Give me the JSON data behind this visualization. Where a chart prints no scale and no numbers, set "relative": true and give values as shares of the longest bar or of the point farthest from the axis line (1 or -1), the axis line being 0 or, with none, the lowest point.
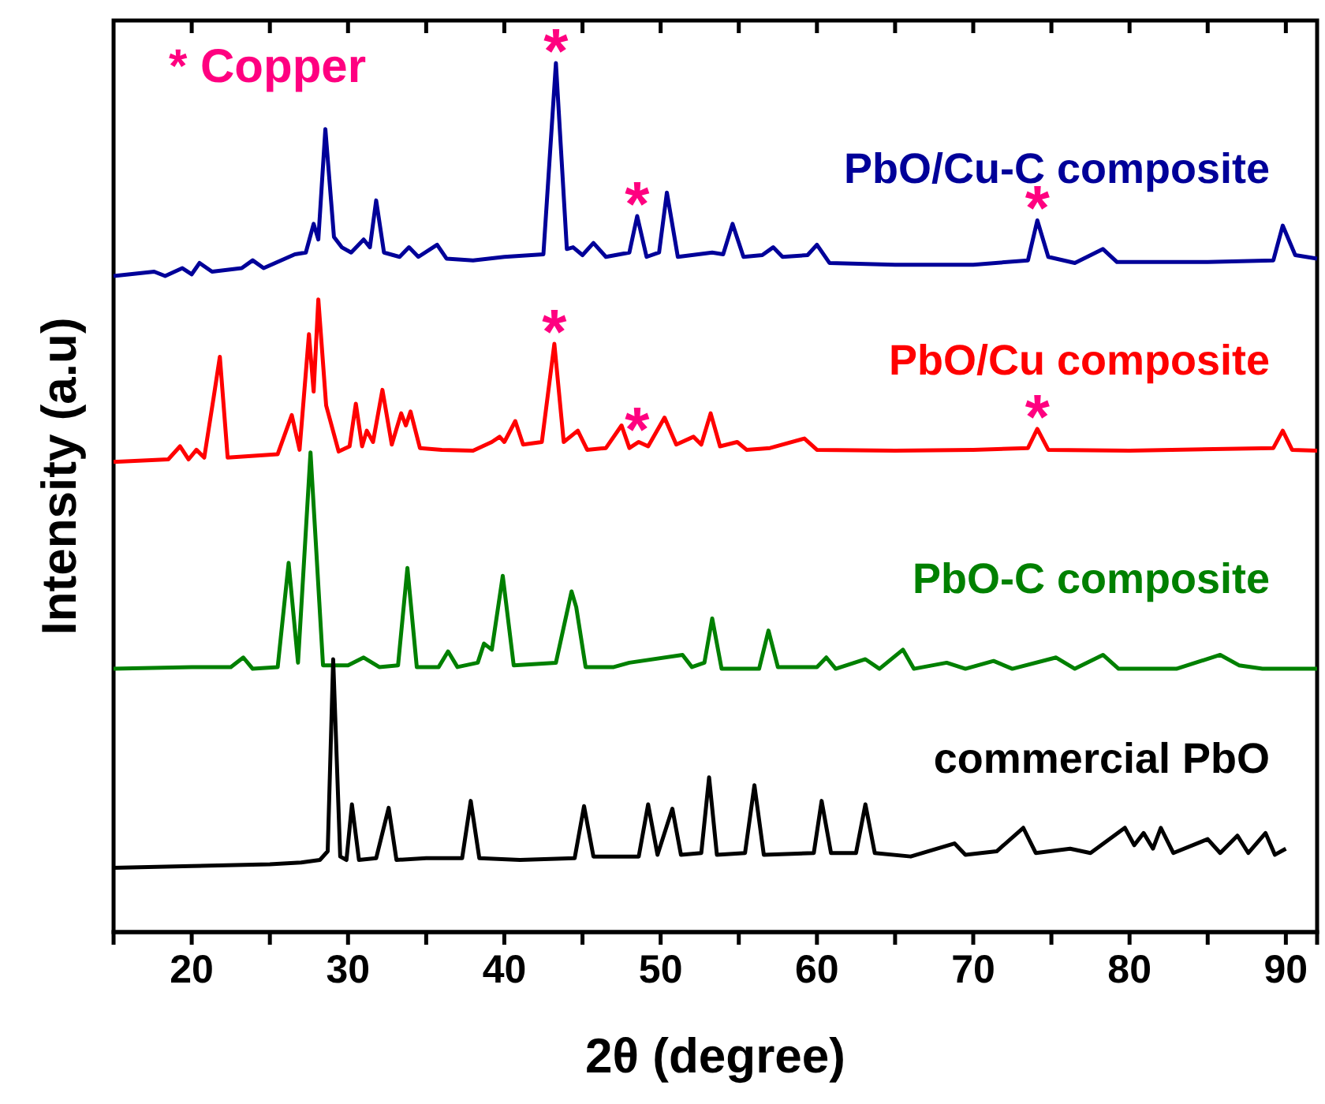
{
  "chart_data": {
    "type": "line",
    "relative": true,
    "xlabel": "2θ (degree)",
    "ylabel": "Intensity (a.u)",
    "xlim": [
      15,
      92
    ],
    "xticks": [
      20,
      {
        "value": 25,
        "label": null
      },
      30,
      {
        "value": 35,
        "label": null
      },
      40,
      {
        "value": 45,
        "label": null
      },
      50,
      {
        "value": 55,
        "label": null
      },
      60,
      {
        "value": 65,
        "label": null
      },
      70,
      {
        "value": 75,
        "label": null
      },
      80,
      {
        "value": 85,
        "label": null
      },
      90
    ],
    "legend": false,
    "series": [
      {
        "name": "PbO/Cu-C composite",
        "color": "#000099",
        "x": [
          15,
          17.6,
          18.3,
          19.4,
          20.0,
          20.5,
          21.3,
          23.2,
          23.9,
          24.6,
          26.6,
          27.3,
          27.8,
          28.1,
          28.55,
          29.1,
          29.6,
          30.2,
          31.0,
          31.4,
          31.8,
          32.3,
          33.3,
          33.9,
          34.5,
          35.7,
          36.3,
          38,
          40,
          42.5,
          43.3,
          44.0,
          44.4,
          45.0,
          45.7,
          46.5,
          48.0,
          48.5,
          49.1,
          49.9,
          50.4,
          51.1,
          53.3,
          54.0,
          54.6,
          55.3,
          56.5,
          57.2,
          57.8,
          59.4,
          60.0,
          60.8,
          65,
          70,
          73.5,
          74.1,
          74.8,
          76.5,
          78.3,
          79.2,
          85,
          89.2,
          89.8,
          90.6,
          92
        ],
        "values": [
          0.755,
          0.76,
          0.755,
          0.764,
          0.757,
          0.77,
          0.76,
          0.764,
          0.773,
          0.764,
          0.78,
          0.782,
          0.815,
          0.797,
          0.924,
          0.8,
          0.788,
          0.782,
          0.797,
          0.788,
          0.842,
          0.782,
          0.777,
          0.788,
          0.777,
          0.791,
          0.775,
          0.773,
          0.777,
          0.78,
          1.0,
          0.786,
          0.788,
          0.779,
          0.793,
          0.777,
          0.782,
          0.824,
          0.777,
          0.782,
          0.851,
          0.777,
          0.782,
          0.78,
          0.815,
          0.777,
          0.779,
          0.788,
          0.777,
          0.779,
          0.791,
          0.77,
          0.768,
          0.768,
          0.773,
          0.819,
          0.777,
          0.77,
          0.786,
          0.771,
          0.771,
          0.773,
          0.813,
          0.779,
          0.775
        ]
      },
      {
        "name": "PbO/Cu composite",
        "color": "#ff0000",
        "x": [
          15,
          18.5,
          19.25,
          19.8,
          20.3,
          20.8,
          21.4,
          21.8,
          22.3,
          25.5,
          26.4,
          26.9,
          27.5,
          27.8,
          28.1,
          28.6,
          29.4,
          30.1,
          30.5,
          30.9,
          31.2,
          31.6,
          32.2,
          32.8,
          33.4,
          33.7,
          34.0,
          34.6,
          36,
          38,
          39.2,
          39.7,
          40.0,
          40.7,
          41.2,
          42.4,
          43.2,
          43.8,
          44.7,
          45.3,
          46.5,
          47.5,
          48.0,
          48.6,
          49.2,
          50.25,
          51,
          52.1,
          52.6,
          53.2,
          53.8,
          54.9,
          55.5,
          57,
          59.2,
          60,
          65,
          70,
          73.5,
          74.1,
          74.8,
          80,
          89.2,
          89.8,
          90.4,
          92
        ],
        "values": [
          0.541,
          0.544,
          0.559,
          0.544,
          0.555,
          0.546,
          0.615,
          0.662,
          0.546,
          0.55,
          0.595,
          0.555,
          0.688,
          0.622,
          0.728,
          0.606,
          0.553,
          0.559,
          0.608,
          0.559,
          0.577,
          0.564,
          0.624,
          0.561,
          0.597,
          0.583,
          0.599,
          0.557,
          0.555,
          0.554,
          0.564,
          0.57,
          0.564,
          0.588,
          0.561,
          0.564,
          0.677,
          0.564,
          0.577,
          0.555,
          0.557,
          0.583,
          0.557,
          0.564,
          0.559,
          0.592,
          0.561,
          0.57,
          0.561,
          0.597,
          0.559,
          0.564,
          0.555,
          0.557,
          0.568,
          0.555,
          0.554,
          0.555,
          0.557,
          0.579,
          0.555,
          0.554,
          0.557,
          0.577,
          0.555,
          0.554
        ]
      },
      {
        "name": "PbO-C composite",
        "color": "#008000",
        "x": [
          15,
          20,
          22.5,
          23.3,
          23.9,
          25.5,
          26.2,
          26.8,
          27.6,
          28.4,
          30,
          31,
          32,
          33.2,
          33.8,
          34.4,
          35.8,
          36.4,
          37,
          38.3,
          38.7,
          39.2,
          39.9,
          40.6,
          43.3,
          44.3,
          44.6,
          45.2,
          47,
          48,
          51.4,
          52,
          52.8,
          53.3,
          53.9,
          56.3,
          56.9,
          57.5,
          60,
          60.6,
          61.2,
          63.1,
          64,
          65.5,
          66.2,
          68.3,
          69.5,
          71.3,
          72.5,
          75.3,
          76.5,
          78.3,
          79.3,
          83,
          85.8,
          87,
          88.5,
          92
        ],
        "values": [
          0.303,
          0.305,
          0.305,
          0.316,
          0.303,
          0.305,
          0.425,
          0.31,
          0.552,
          0.307,
          0.307,
          0.316,
          0.305,
          0.307,
          0.419,
          0.305,
          0.305,
          0.323,
          0.305,
          0.31,
          0.332,
          0.325,
          0.41,
          0.307,
          0.31,
          0.392,
          0.374,
          0.305,
          0.305,
          0.31,
          0.319,
          0.305,
          0.31,
          0.361,
          0.303,
          0.303,
          0.347,
          0.305,
          0.305,
          0.316,
          0.303,
          0.314,
          0.303,
          0.325,
          0.303,
          0.31,
          0.303,
          0.312,
          0.303,
          0.316,
          0.303,
          0.319,
          0.303,
          0.303,
          0.319,
          0.307,
          0.303,
          0.303
        ]
      },
      {
        "name": "commercial PbO",
        "color": "#000000",
        "x": [
          15,
          20,
          25,
          27,
          28.2,
          28.7,
          29.05,
          29.5,
          29.9,
          30.25,
          30.7,
          31.8,
          32.6,
          33.1,
          35,
          37.3,
          37.85,
          38.4,
          41,
          44.5,
          45.1,
          45.7,
          48.6,
          49.2,
          49.8,
          50.75,
          51.3,
          52.6,
          53.1,
          53.6,
          55.4,
          56.0,
          56.6,
          59.8,
          60.3,
          60.9,
          62.5,
          63.1,
          63.7,
          66,
          68.8,
          69.5,
          71.5,
          73.2,
          74,
          76.2,
          77.5,
          79.7,
          80.3,
          80.9,
          81.5,
          82.0,
          82.8,
          85.0,
          85.8,
          86.9,
          87.6,
          88.7,
          89.3,
          90
        ],
        "values": [
          0.074,
          0.076,
          0.078,
          0.08,
          0.083,
          0.093,
          0.314,
          0.087,
          0.083,
          0.147,
          0.083,
          0.085,
          0.143,
          0.083,
          0.085,
          0.085,
          0.151,
          0.085,
          0.083,
          0.085,
          0.145,
          0.087,
          0.087,
          0.147,
          0.089,
          0.142,
          0.089,
          0.091,
          0.178,
          0.089,
          0.091,
          0.169,
          0.089,
          0.091,
          0.151,
          0.091,
          0.091,
          0.147,
          0.091,
          0.087,
          0.102,
          0.089,
          0.093,
          0.12,
          0.091,
          0.096,
          0.091,
          0.12,
          0.1,
          0.114,
          0.096,
          0.12,
          0.091,
          0.107,
          0.091,
          0.111,
          0.091,
          0.114,
          0.089,
          0.096
        ]
      }
    ],
    "annotations": [
      "* Copper",
      {
        "text": "*",
        "x": 43.3,
        "y": 1.0
      },
      {
        "text": "*",
        "x": 48.5,
        "y": 0.824
      },
      {
        "text": "*",
        "x": 74.1,
        "y": 0.819
      },
      {
        "text": "*",
        "x": 43.2,
        "y": 0.677
      },
      {
        "text": "*",
        "x": 48.5,
        "y": 0.564
      },
      {
        "text": "*",
        "x": 74.1,
        "y": 0.579
      }
    ]
  }
}
